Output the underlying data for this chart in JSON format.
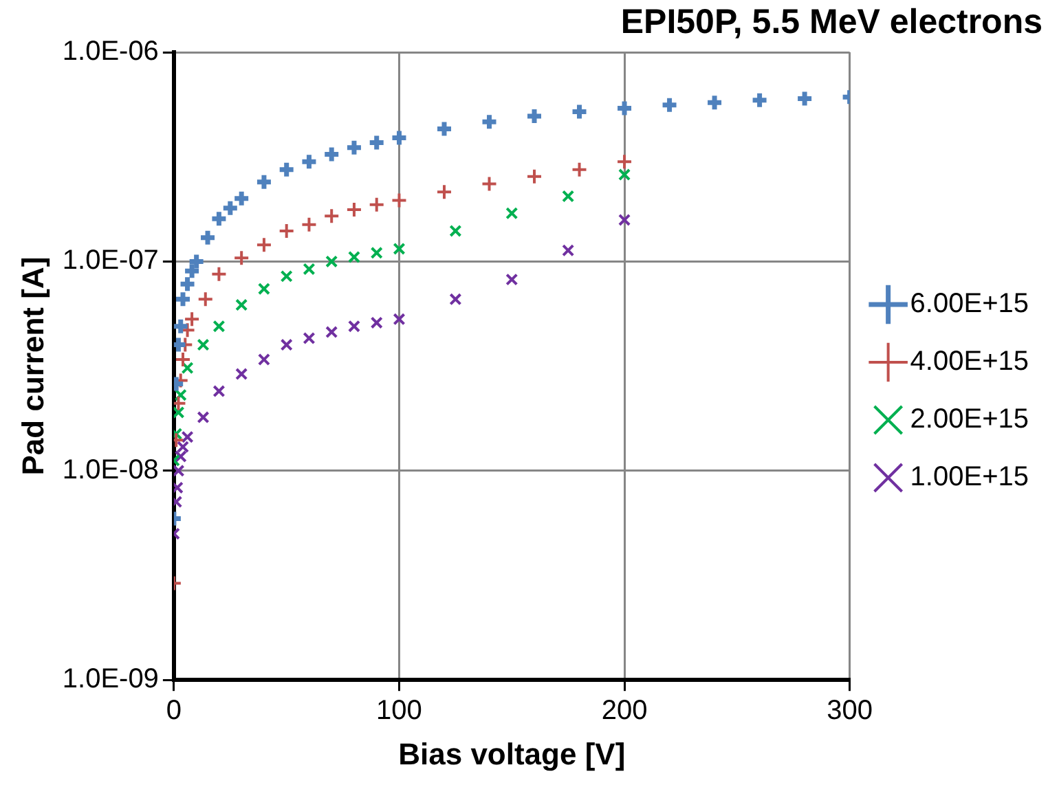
{
  "chart_data": {
    "type": "scatter",
    "title": "EPI50P, 5.5 MeV electrons",
    "xlabel": "Bias voltage [V]",
    "ylabel": "Pad current [A]",
    "log": "y",
    "grid": true,
    "legend": "right",
    "xlim": [
      0,
      300
    ],
    "xticks": [
      0,
      100,
      200,
      300
    ],
    "ylim": [
      1e-09,
      1e-06
    ],
    "yticks": [
      {
        "value": 1e-09,
        "label": "1.0E-09"
      },
      {
        "value": 1e-08,
        "label": "1.0E-08"
      },
      {
        "value": 1e-07,
        "label": "1.0E-07"
      },
      {
        "value": 1e-06,
        "label": "1.0E-06"
      }
    ],
    "series": [
      {
        "name": "6.00E+15",
        "color": "#4f81bd",
        "marker": "plus",
        "x": [
          0,
          1,
          2,
          3,
          4,
          6,
          8,
          10,
          15,
          20,
          25,
          30,
          40,
          50,
          60,
          70,
          80,
          90,
          100,
          120,
          140,
          160,
          180,
          200,
          220,
          240,
          260,
          280,
          300
        ],
        "values": [
          5.9e-09,
          2.6e-08,
          4e-08,
          4.9e-08,
          6.6e-08,
          7.8e-08,
          9e-08,
          1e-07,
          1.3e-07,
          1.6e-07,
          1.8e-07,
          2e-07,
          2.4e-07,
          2.75e-07,
          3e-07,
          3.25e-07,
          3.5e-07,
          3.7e-07,
          3.9e-07,
          4.3e-07,
          4.65e-07,
          4.95e-07,
          5.2e-07,
          5.4e-07,
          5.6e-07,
          5.75e-07,
          5.9e-07,
          6e-07,
          6.1e-07
        ]
      },
      {
        "name": "4.00E+15",
        "color": "#c0504d",
        "marker": "plus",
        "x": [
          0,
          1,
          2,
          3,
          4,
          5,
          6,
          8,
          14,
          20,
          30,
          40,
          50,
          60,
          70,
          80,
          90,
          100,
          120,
          140,
          160,
          180,
          200
        ],
        "values": [
          2.9e-09,
          1.4e-08,
          2.1e-08,
          2.7e-08,
          3.4e-08,
          4e-08,
          4.7e-08,
          5.3e-08,
          6.6e-08,
          8.7e-08,
          1.04e-07,
          1.2e-07,
          1.4e-07,
          1.5e-07,
          1.65e-07,
          1.77e-07,
          1.87e-07,
          1.96e-07,
          2.15e-07,
          2.35e-07,
          2.55e-07,
          2.75e-07,
          3e-07
        ]
      },
      {
        "name": "2.00E+15",
        "color": "#00b050",
        "marker": "cross",
        "x": [
          0,
          1,
          2,
          3,
          6,
          13,
          20,
          30,
          40,
          50,
          60,
          70,
          80,
          90,
          100,
          125,
          150,
          175,
          200
        ],
        "values": [
          1.12e-08,
          1.5e-08,
          1.9e-08,
          2.3e-08,
          3.1e-08,
          4e-08,
          4.9e-08,
          6.2e-08,
          7.4e-08,
          8.5e-08,
          9.2e-08,
          1e-07,
          1.05e-07,
          1.1e-07,
          1.15e-07,
          1.4e-07,
          1.7e-07,
          2.05e-07,
          2.6e-07
        ]
      },
      {
        "name": "1.00E+15",
        "color": "#7030a0",
        "marker": "cross",
        "x": [
          0,
          1,
          1.5,
          2,
          3,
          4,
          6,
          13,
          20,
          30,
          40,
          50,
          60,
          70,
          80,
          90,
          100,
          125,
          150,
          175,
          200
        ],
        "values": [
          5e-09,
          7.1e-09,
          8.3e-09,
          1e-08,
          1.17e-08,
          1.3e-08,
          1.45e-08,
          1.8e-08,
          2.4e-08,
          2.9e-08,
          3.4e-08,
          4e-08,
          4.3e-08,
          4.6e-08,
          4.9e-08,
          5.1e-08,
          5.3e-08,
          6.6e-08,
          8.2e-08,
          1.13e-07,
          1.58e-07
        ]
      }
    ]
  }
}
